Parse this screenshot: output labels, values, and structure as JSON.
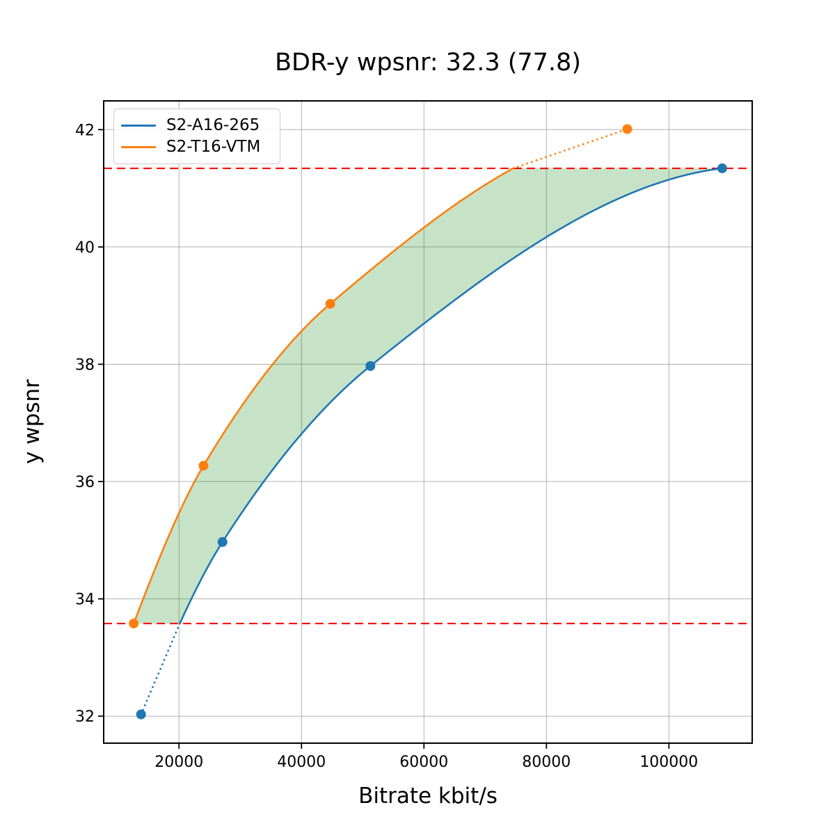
{
  "chart_data": {
    "type": "line",
    "title": "BDR-y wpsnr: 32.3 (77.8)",
    "xlabel": "Bitrate kbit/s",
    "ylabel": "y wpsnr",
    "xlim": [
      7700,
      113600
    ],
    "ylim": [
      31.54,
      42.49
    ],
    "x_ticks": [
      20000,
      40000,
      60000,
      80000,
      100000
    ],
    "x_tick_labels": [
      "20000",
      "40000",
      "60000",
      "80000",
      "100000"
    ],
    "y_ticks": [
      32,
      34,
      36,
      38,
      40,
      42
    ],
    "y_tick_labels": [
      "32",
      "34",
      "36",
      "38",
      "40",
      "42"
    ],
    "grid": true,
    "legend_position": "upper-left",
    "series": [
      {
        "name": "S2-A16-265",
        "color": "#1f77b4",
        "marker": "circle",
        "x": [
          13800,
          27100,
          51250,
          108700
        ],
        "y": [
          32.03,
          34.97,
          37.97,
          41.34
        ]
      },
      {
        "name": "S2-T16-VTM",
        "color": "#ff7f0e",
        "marker": "circle",
        "x": [
          12600,
          24000,
          44700,
          93200
        ],
        "y": [
          33.58,
          36.27,
          39.03,
          42.01
        ]
      }
    ],
    "overlap_lines": {
      "lower": 33.58,
      "upper": 41.34,
      "color": "#ff0000",
      "style": "dashed"
    },
    "fill_between": {
      "color": "#008000",
      "opacity": 0.22
    },
    "colors": {
      "grid": "#b0b0b0",
      "frame": "#000000",
      "tick_text": "#000000",
      "background": "#ffffff"
    }
  }
}
